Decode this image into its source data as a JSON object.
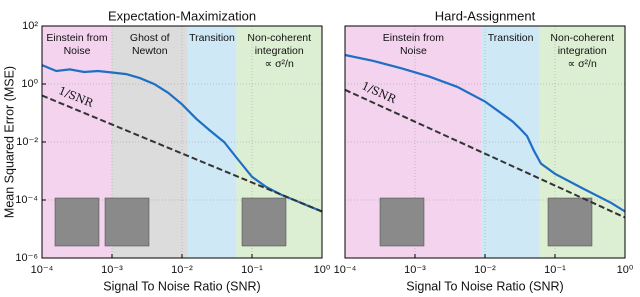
{
  "chart_data": [
    {
      "type": "line",
      "title": "Expectation-Maximization",
      "xlabel": "Signal To Noise Ratio (SNR)",
      "ylabel": "Mean Squared Error (MSE)",
      "xscale": "log",
      "yscale": "log",
      "grid": true,
      "xlim": [
        0.0001,
        1
      ],
      "ylim": [
        1e-06,
        100
      ],
      "xticks": [
        {
          "value": 0.0001,
          "label": "10⁻⁴"
        },
        {
          "value": 0.001,
          "label": "10⁻³"
        },
        {
          "value": 0.01,
          "label": "10⁻²"
        },
        {
          "value": 0.1,
          "label": "10⁻¹"
        },
        {
          "value": 1,
          "label": "10⁰"
        }
      ],
      "yticks": [
        {
          "value": 1e-06,
          "label": "10⁻⁶"
        },
        {
          "value": 0.0001,
          "label": "10⁻⁴"
        },
        {
          "value": 0.01,
          "label": "10⁻²"
        },
        {
          "value": 1,
          "label": "10⁰"
        },
        {
          "value": 100,
          "label": "10²"
        }
      ],
      "regions": [
        {
          "label": [
            "Einstein from",
            "Noise"
          ],
          "from": 0.0001,
          "to": 0.001,
          "color": "#f3d3ee"
        },
        {
          "label": [
            "Ghost of",
            "Newton"
          ],
          "from": 0.001,
          "to": 0.012,
          "color": "#dcdcdc"
        },
        {
          "label": [
            "Transition"
          ],
          "from": 0.012,
          "to": 0.06,
          "color": "#cfe8f5"
        },
        {
          "label": [
            "Non-coherent",
            "integration",
            "∝ σ²/n"
          ],
          "from": 0.06,
          "to": 1,
          "color": "#ddefd3"
        }
      ],
      "series": [
        {
          "color": "#1f6fc5",
          "style": "solid",
          "x": [
            0.0001,
            0.00016,
            0.00025,
            0.0004,
            0.00063,
            0.001,
            0.0016,
            0.0025,
            0.004,
            0.0063,
            0.01,
            0.016,
            0.025,
            0.04,
            0.063,
            0.1,
            0.16,
            0.25,
            0.4,
            0.63,
            1
          ],
          "values": [
            4.5,
            2.8,
            3.2,
            2.6,
            2.8,
            2.5,
            2.2,
            1.6,
            1.0,
            0.5,
            0.2,
            0.063,
            0.025,
            0.01,
            0.0025,
            0.00063,
            0.00028,
            0.00016,
            0.0001,
            6.3e-05,
            4e-05
          ]
        },
        {
          "color": "#333333",
          "style": "dashed",
          "x": [
            0.0001,
            1
          ],
          "values": [
            0.4,
            4e-05
          ]
        }
      ],
      "annotation": "1/SNR"
    },
    {
      "type": "line",
      "title": "Hard-Assignment",
      "xlabel": "Signal To Noise Ratio (SNR)",
      "xscale": "log",
      "yscale": "log",
      "grid": true,
      "xlim": [
        0.0001,
        1
      ],
      "ylim": [
        1e-06,
        100
      ],
      "xticks": [
        {
          "value": 0.0001,
          "label": "10⁻⁴"
        },
        {
          "value": 0.001,
          "label": "10⁻³"
        },
        {
          "value": 0.01,
          "label": "10⁻²"
        },
        {
          "value": 0.1,
          "label": "10⁻¹"
        },
        {
          "value": 1,
          "label": "10⁰"
        }
      ],
      "regions": [
        {
          "label": [
            "Einstein from",
            "Noise"
          ],
          "from": 0.0001,
          "to": 0.009,
          "color": "#f3d3ee"
        },
        {
          "label": [
            "Transition"
          ],
          "from": 0.009,
          "to": 0.06,
          "color": "#cfe8f5"
        },
        {
          "label": [
            "Non-coherent",
            "integration",
            "∝ σ²/n"
          ],
          "from": 0.06,
          "to": 1,
          "color": "#ddefd3"
        }
      ],
      "series": [
        {
          "color": "#1f6fc5",
          "style": "solid",
          "x": [
            0.0001,
            0.00025,
            0.00063,
            0.0016,
            0.004,
            0.01,
            0.016,
            0.025,
            0.032,
            0.04,
            0.05,
            0.063,
            0.1,
            0.25,
            0.63,
            1
          ],
          "values": [
            10,
            6.3,
            3.5,
            1.8,
            0.8,
            0.25,
            0.11,
            0.05,
            0.028,
            0.016,
            0.005,
            0.0018,
            0.0008,
            0.00025,
            8e-05,
            4e-05
          ]
        },
        {
          "color": "#333333",
          "style": "dashed",
          "x": [
            0.0001,
            1
          ],
          "values": [
            0.63,
            2.5e-05
          ]
        }
      ],
      "annotation": "1/SNR"
    }
  ]
}
